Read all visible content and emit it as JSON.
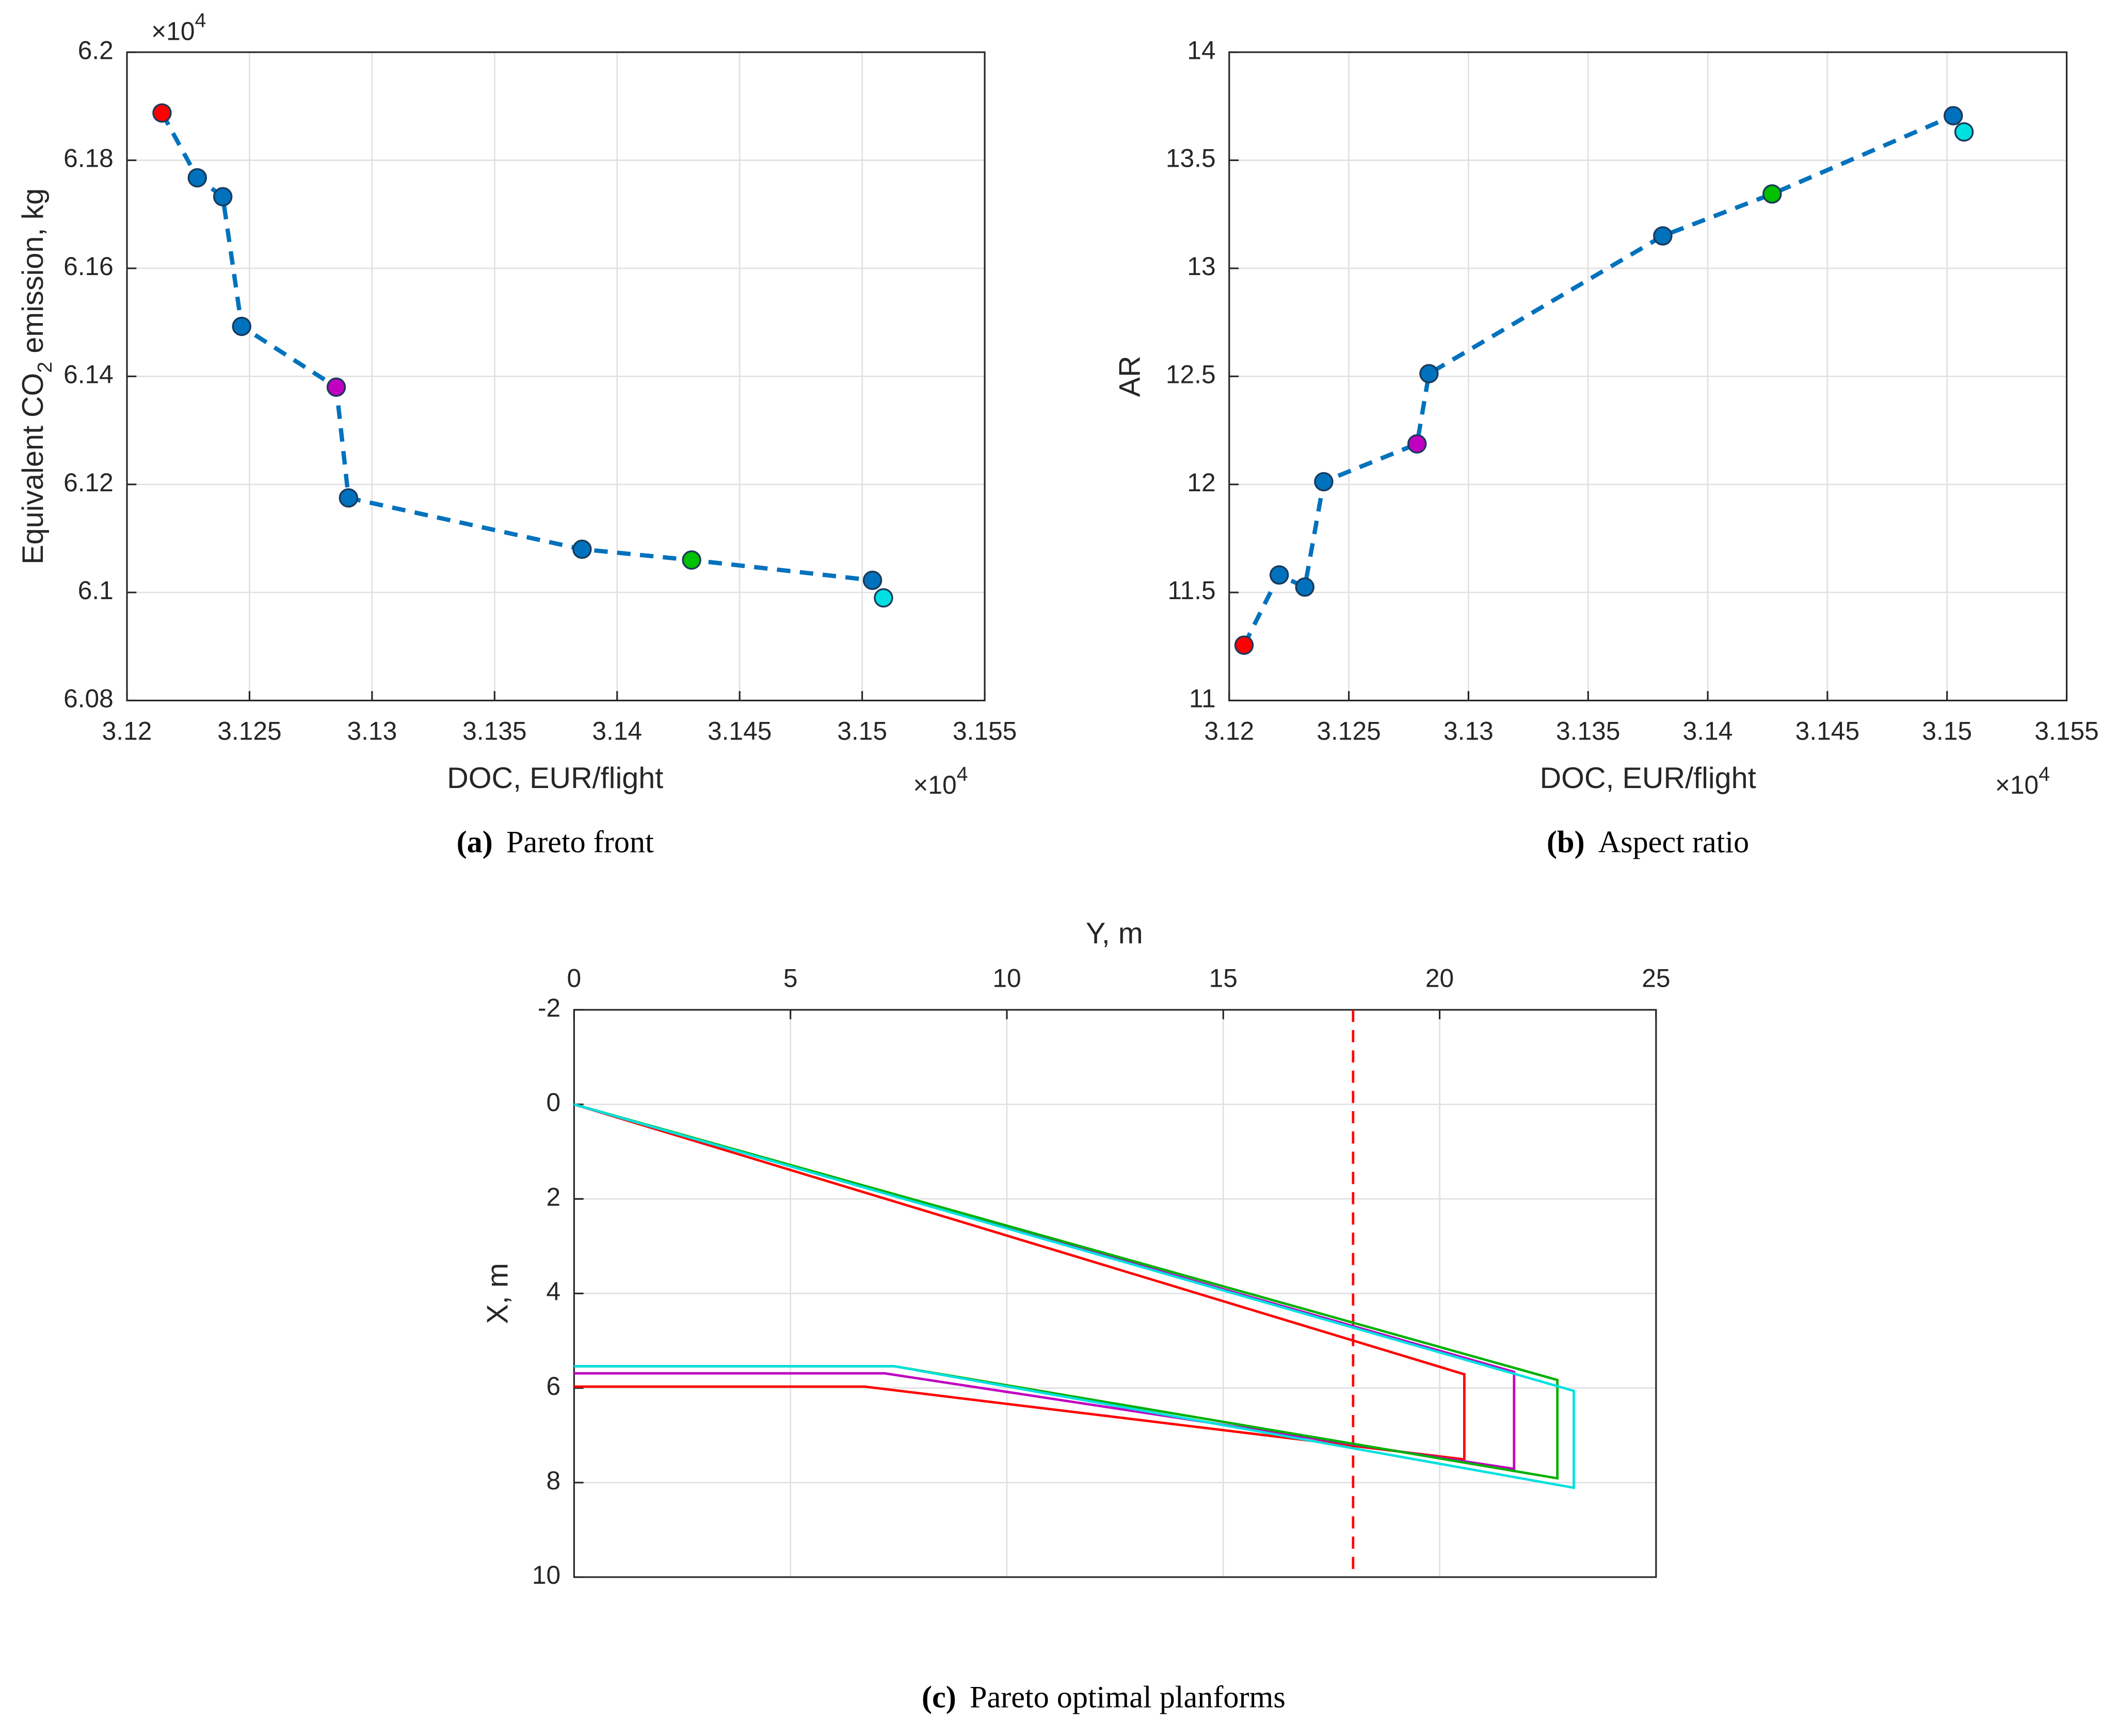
{
  "chart_data": [
    {
      "type": "line",
      "xlabel": "DOC, EUR/flight",
      "ylabel": [
        "Equivalent CO",
        "2",
        " emission, kg"
      ],
      "x_multiplier": [
        "×10",
        "4"
      ],
      "y_multiplier": [
        "×10",
        "4"
      ],
      "caption_tag": "(a)",
      "caption": "Pareto front",
      "xlim": [
        3.12,
        3.155
      ],
      "xticks": [
        3.12,
        3.125,
        3.13,
        3.135,
        3.14,
        3.145,
        3.15,
        3.155
      ],
      "ylim": [
        6.08,
        6.2
      ],
      "yticks": [
        6.08,
        6.1,
        6.12,
        6.14,
        6.16,
        6.18,
        6.2
      ],
      "grid": true,
      "series": [
        {
          "color": "#0072bd",
          "dashed": true,
          "markers": true,
          "x": [
            3.12143,
            3.12287,
            3.12391,
            3.12468,
            3.12854,
            3.12904,
            3.13857,
            3.14304,
            3.15042,
            3.15087
          ],
          "values": [
            6.18875,
            6.17675,
            6.17325,
            6.14925,
            6.138,
            6.1175,
            6.108,
            6.106,
            6.10225,
            6.099
          ],
          "point_colors": [
            "#ff0000",
            "#0072bd",
            "#0072bd",
            "#0072bd",
            "#c000c0",
            "#0072bd",
            "#0072bd",
            "#00c000",
            "#0072bd",
            "#00e0e0"
          ]
        }
      ]
    },
    {
      "type": "line",
      "xlabel": "DOC, EUR/flight",
      "ylabel": [
        "AR"
      ],
      "x_multiplier": [
        "×10",
        "4"
      ],
      "caption_tag": "(b)",
      "caption": "Aspect ratio",
      "xlim": [
        3.12,
        3.155
      ],
      "xticks": [
        3.12,
        3.125,
        3.13,
        3.135,
        3.14,
        3.145,
        3.15,
        3.155
      ],
      "ylim": [
        11,
        14
      ],
      "yticks": [
        11,
        11.5,
        12,
        12.5,
        13,
        13.5,
        14
      ],
      "grid": true,
      "series": [
        {
          "color": "#0072bd",
          "dashed": true,
          "markers": true,
          "x": [
            3.12062,
            3.12209,
            3.12316,
            3.12395,
            3.12785,
            3.12835,
            3.13812,
            3.14269,
            3.15026,
            3.15071
          ],
          "values": [
            11.256,
            11.581,
            11.525,
            12.0125,
            12.1875,
            12.5125,
            13.15,
            13.344,
            13.706,
            13.631
          ],
          "point_colors": [
            "#ff0000",
            "#0072bd",
            "#0072bd",
            "#0072bd",
            "#c000c0",
            "#0072bd",
            "#0072bd",
            "#00c000",
            "#0072bd",
            "#00e0e0"
          ]
        }
      ]
    },
    {
      "type": "line",
      "xlabel": "Y, m",
      "ylabel": [
        "X, m"
      ],
      "caption_tag": "(c)",
      "caption": "Pareto optimal planforms",
      "xaxis_location": "top",
      "yreverse": true,
      "xlim": [
        0,
        25
      ],
      "xticks": [
        0,
        5,
        10,
        15,
        20,
        25
      ],
      "ylim": [
        -2,
        10
      ],
      "yticks": [
        -2,
        0,
        2,
        4,
        6,
        8,
        10
      ],
      "grid": true,
      "vline": 18,
      "vline_color": "#ff0000",
      "series": [
        {
          "color": "#ff0000",
          "x": [
            0,
            20.57,
            20.57,
            6.71,
            0
          ],
          "values": [
            0,
            5.71,
            7.51,
            5.97,
            5.97
          ]
        },
        {
          "color": "#c000c0",
          "x": [
            0,
            21.72,
            21.72,
            7.18,
            0
          ],
          "values": [
            0,
            5.66,
            7.71,
            5.69,
            5.69
          ]
        },
        {
          "color": "#00b000",
          "x": [
            0,
            22.72,
            22.72,
            7.4,
            0
          ],
          "values": [
            0,
            5.83,
            7.91,
            5.54,
            5.54
          ]
        },
        {
          "color": "#00e0e0",
          "x": [
            0,
            23.1,
            23.1,
            7.4,
            0
          ],
          "values": [
            0,
            6.06,
            8.11,
            5.54,
            5.54
          ]
        }
      ]
    }
  ]
}
